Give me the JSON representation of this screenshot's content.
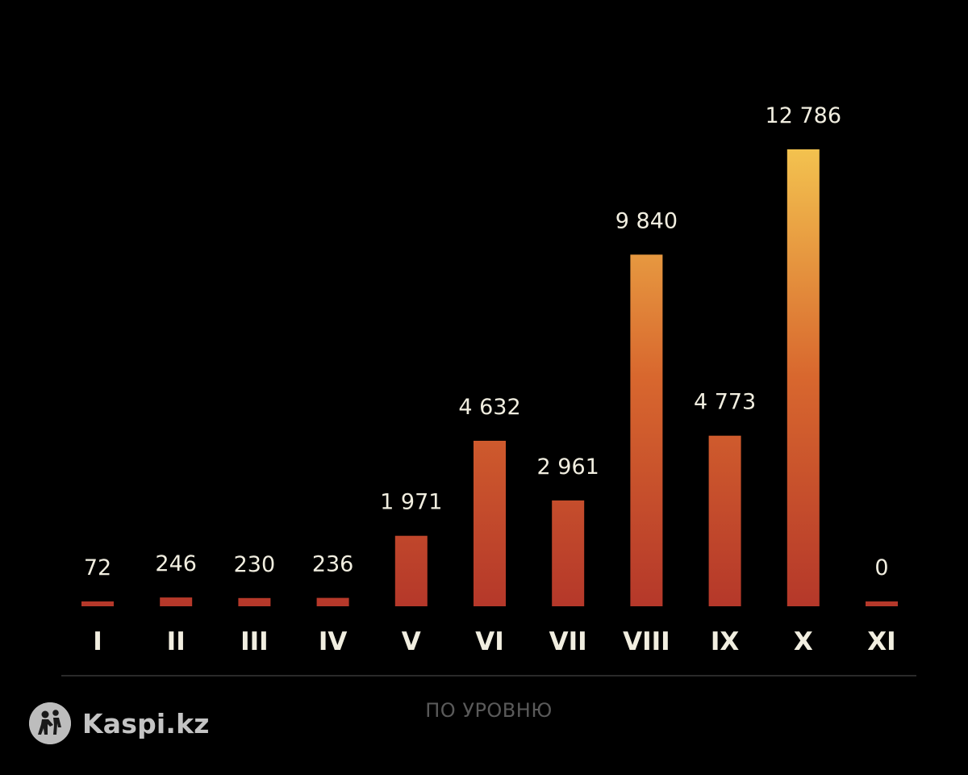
{
  "chart_data": {
    "type": "bar",
    "categories": [
      "I",
      "II",
      "III",
      "IV",
      "V",
      "VI",
      "VII",
      "VIII",
      "IX",
      "X",
      "XI"
    ],
    "values": [
      72,
      246,
      230,
      236,
      1971,
      4632,
      2961,
      9840,
      4773,
      12786,
      0
    ],
    "value_labels": [
      "72",
      "246",
      "230",
      "236",
      "1 971",
      "4 632",
      "2 961",
      "9 840",
      "4 773",
      "12 786",
      "0"
    ],
    "xlabel": "ПО УРОВНЮ",
    "ylim": [
      0,
      12786
    ],
    "grid": false,
    "legend": "none",
    "colors": {
      "gradient_bottom": "#b5382a",
      "gradient_mid": "#d8672e",
      "gradient_top": "#f3c24f",
      "label_text": "#f1eee0",
      "axis_label_text": "#5a5a5a",
      "background": "#000000"
    }
  },
  "brand": {
    "name": "Kaspi.kz",
    "icon": "kaspi-logo-icon"
  }
}
